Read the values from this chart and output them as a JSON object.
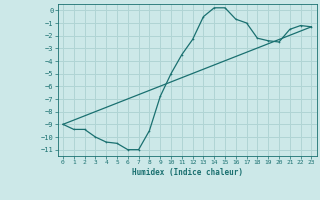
{
  "xlabel": "Humidex (Indice chaleur)",
  "ylabel": "",
  "bg_color": "#cce8e8",
  "grid_color": "#b0d4d4",
  "line_color": "#1a7070",
  "xlim": [
    -0.5,
    23.5
  ],
  "ylim": [
    -11.5,
    0.5
  ],
  "xticks": [
    0,
    1,
    2,
    3,
    4,
    5,
    6,
    7,
    8,
    9,
    10,
    11,
    12,
    13,
    14,
    15,
    16,
    17,
    18,
    19,
    20,
    21,
    22,
    23
  ],
  "yticks": [
    0,
    -1,
    -2,
    -3,
    -4,
    -5,
    -6,
    -7,
    -8,
    -9,
    -10,
    -11
  ],
  "curve1_x": [
    0,
    1,
    2,
    3,
    4,
    5,
    6,
    7,
    8,
    9,
    10,
    11,
    12,
    13,
    14,
    15,
    16,
    17,
    18,
    19,
    20,
    21,
    22,
    23
  ],
  "curve1_y": [
    -9.0,
    -9.4,
    -9.4,
    -10.0,
    -10.4,
    -10.5,
    -11.0,
    -11.0,
    -9.5,
    -6.8,
    -5.0,
    -3.5,
    -2.3,
    -0.5,
    0.2,
    0.2,
    -0.7,
    -1.0,
    -2.2,
    -2.4,
    -2.5,
    -1.5,
    -1.2,
    -1.3
  ],
  "curve2_x": [
    0,
    23
  ],
  "curve2_y": [
    -9.0,
    -1.3
  ]
}
